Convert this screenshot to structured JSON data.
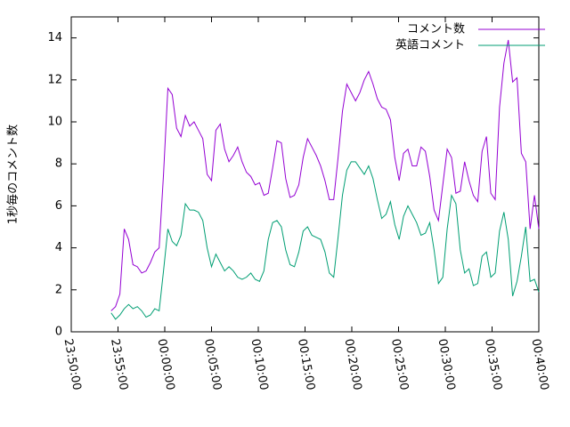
{
  "chart_data": {
    "type": "line",
    "ylabel": "1秒毎のコメント数",
    "xlim": [
      "23:50:00",
      "00:40:00"
    ],
    "xticks": [
      "23:50:00",
      "23:55:00",
      "00:00:00",
      "00:05:00",
      "00:10:00",
      "00:15:00",
      "00:20:00",
      "00:25:00",
      "00:30:00",
      "00:35:00",
      "00:40:00"
    ],
    "ylim": [
      0,
      15
    ],
    "yticks": [
      0,
      2,
      4,
      6,
      8,
      10,
      12,
      14
    ],
    "legend": "top-right",
    "x": [
      "23:54:16",
      "23:54:44",
      "23:55:12",
      "23:55:40",
      "23:56:08",
      "23:56:36",
      "23:57:04",
      "23:57:32",
      "23:58:00",
      "23:58:28",
      "23:58:56",
      "23:59:24",
      "23:59:52",
      "00:00:20",
      "00:00:48",
      "00:01:16",
      "00:01:44",
      "00:02:12",
      "00:02:40",
      "00:03:08",
      "00:03:36",
      "00:04:04",
      "00:04:32",
      "00:05:00",
      "00:05:28",
      "00:05:56",
      "00:06:24",
      "00:06:52",
      "00:07:20",
      "00:07:48",
      "00:08:16",
      "00:08:44",
      "00:09:12",
      "00:09:40",
      "00:10:08",
      "00:10:36",
      "00:11:04",
      "00:11:32",
      "00:12:00",
      "00:12:28",
      "00:12:56",
      "00:13:24",
      "00:13:52",
      "00:14:20",
      "00:14:48",
      "00:15:16",
      "00:15:44",
      "00:16:12",
      "00:16:40",
      "00:17:08",
      "00:17:36",
      "00:18:04",
      "00:18:32",
      "00:19:00",
      "00:19:28",
      "00:19:56",
      "00:20:24",
      "00:20:52",
      "00:21:20",
      "00:21:48",
      "00:22:16",
      "00:22:44",
      "00:23:12",
      "00:23:40",
      "00:24:08",
      "00:24:36",
      "00:25:04",
      "00:25:32",
      "00:26:00",
      "00:26:28",
      "00:26:56",
      "00:27:24",
      "00:27:52",
      "00:28:20",
      "00:28:48",
      "00:29:16",
      "00:29:44",
      "00:30:12",
      "00:30:40",
      "00:31:08",
      "00:31:36",
      "00:32:04",
      "00:32:32",
      "00:33:00",
      "00:33:28",
      "00:33:56",
      "00:34:24",
      "00:34:52",
      "00:35:20",
      "00:35:48",
      "00:36:16",
      "00:36:44",
      "00:37:12",
      "00:37:40",
      "00:38:08",
      "00:38:36",
      "00:39:04",
      "00:39:32",
      "00:40:00"
    ],
    "series": [
      {
        "name": "コメント数",
        "color": "#9400d3",
        "values": [
          1.0,
          1.2,
          1.8,
          4.9,
          4.4,
          3.2,
          3.1,
          2.8,
          2.9,
          3.3,
          3.8,
          4.0,
          7.5,
          11.6,
          11.3,
          9.7,
          9.3,
          10.3,
          9.8,
          10.0,
          9.6,
          9.2,
          7.5,
          7.2,
          9.6,
          9.9,
          8.7,
          8.1,
          8.4,
          8.8,
          8.1,
          7.6,
          7.4,
          7.0,
          7.1,
          6.5,
          6.6,
          7.8,
          9.1,
          9.0,
          7.3,
          6.4,
          6.5,
          7.0,
          8.3,
          9.2,
          8.8,
          8.4,
          7.9,
          7.2,
          6.3,
          6.3,
          8.3,
          10.5,
          11.8,
          11.4,
          11.0,
          11.4,
          12.0,
          12.4,
          11.8,
          11.1,
          10.7,
          10.6,
          10.1,
          8.3,
          7.2,
          8.5,
          8.7,
          7.9,
          7.9,
          8.8,
          8.6,
          7.4,
          5.8,
          5.3,
          7.0,
          8.7,
          8.3,
          6.6,
          6.7,
          8.1,
          7.2,
          6.5,
          6.2,
          8.6,
          9.3,
          6.6,
          6.3,
          10.7,
          12.8,
          13.9,
          11.9,
          12.1,
          8.5,
          8.1,
          4.9,
          6.5,
          4.9
        ]
      },
      {
        "name": "英語コメント",
        "color": "#009e73",
        "values": [
          0.9,
          0.6,
          0.8,
          1.1,
          1.3,
          1.1,
          1.2,
          1.0,
          0.7,
          0.8,
          1.1,
          1.0,
          2.9,
          4.9,
          4.3,
          4.1,
          4.6,
          6.1,
          5.8,
          5.8,
          5.7,
          5.3,
          4.0,
          3.1,
          3.7,
          3.3,
          2.9,
          3.1,
          2.9,
          2.6,
          2.5,
          2.6,
          2.8,
          2.5,
          2.4,
          2.9,
          4.4,
          5.2,
          5.3,
          5.0,
          3.9,
          3.2,
          3.1,
          3.8,
          4.8,
          5.0,
          4.6,
          4.5,
          4.4,
          3.8,
          2.8,
          2.6,
          4.5,
          6.5,
          7.7,
          8.1,
          8.1,
          7.8,
          7.5,
          7.9,
          7.3,
          6.3,
          5.4,
          5.6,
          6.2,
          5.1,
          4.4,
          5.5,
          6.0,
          5.6,
          5.2,
          4.6,
          4.7,
          5.2,
          3.9,
          2.3,
          2.6,
          4.9,
          6.5,
          6.1,
          3.9,
          2.8,
          3.0,
          2.2,
          2.3,
          3.6,
          3.8,
          2.6,
          2.8,
          4.8,
          5.7,
          4.4,
          1.7,
          2.4,
          3.6,
          5.0,
          2.4,
          2.5,
          1.9
        ]
      }
    ]
  }
}
